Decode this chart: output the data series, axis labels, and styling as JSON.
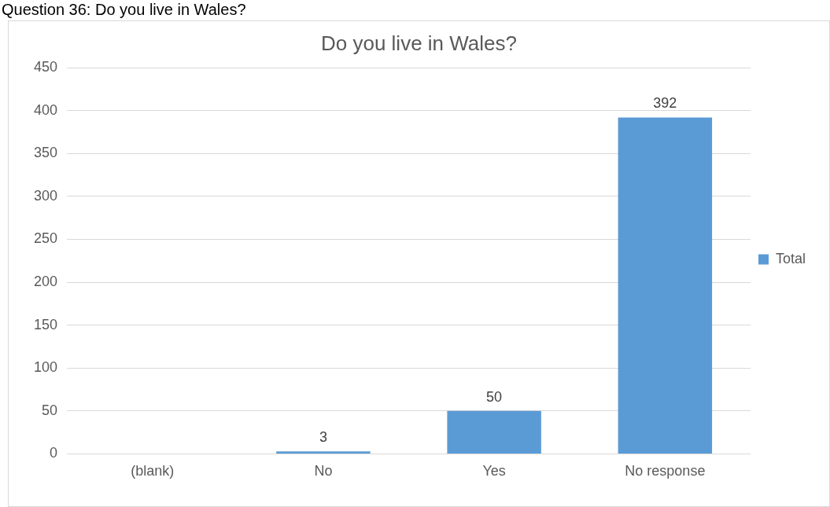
{
  "chart_data": {
    "type": "bar",
    "title": "Do you live in Wales?",
    "annotations": [
      "Question 36: Do you live in Wales?"
    ],
    "categories": [
      "(blank)",
      "No",
      "Yes",
      "No response"
    ],
    "series": [
      {
        "name": "Total",
        "color": "#5b9bd5",
        "values": [
          null,
          3,
          50,
          392
        ]
      }
    ],
    "ylim": [
      0,
      450
    ],
    "yticks": [
      0,
      50,
      100,
      150,
      200,
      250,
      300,
      350,
      400,
      450
    ],
    "grid": "y",
    "legend": "right",
    "data_labels": true
  }
}
